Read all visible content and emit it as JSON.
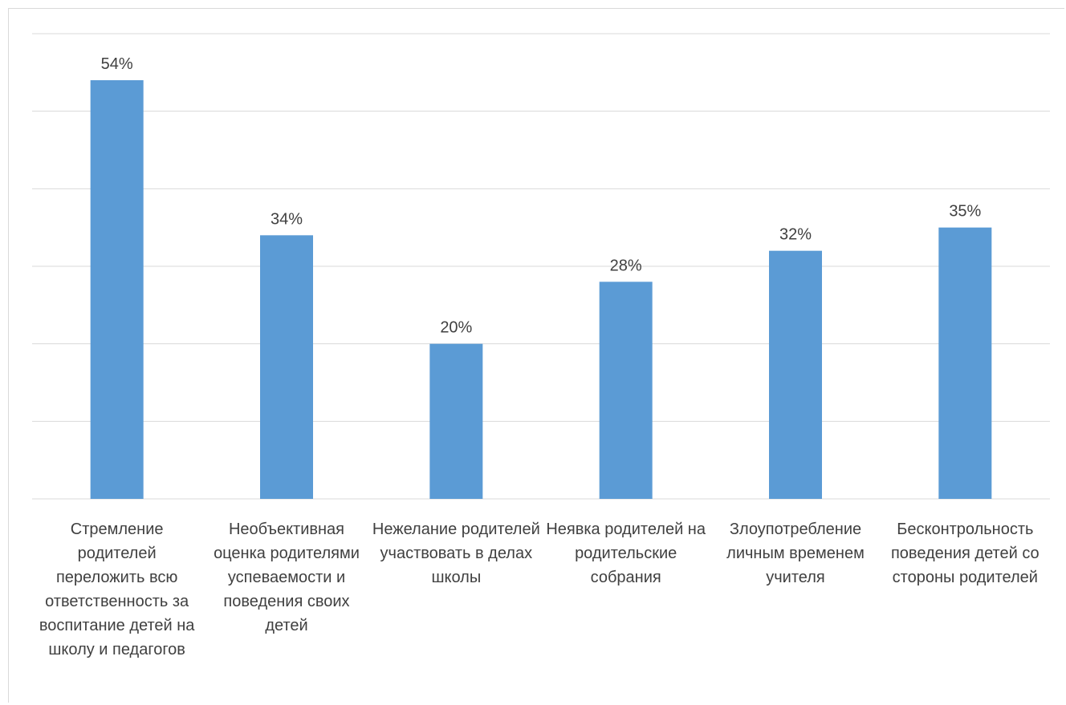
{
  "chart_data": {
    "type": "bar",
    "categories": [
      "Стремление родителей переложить всю ответственность за воспитание детей на школу и педагогов",
      "Необъективная оценка родителями успеваемости и поведения своих детей",
      "Нежелание родителей участвовать в делах школы",
      "Неявка родителей на родительские собрания",
      "Злоупотребление личным временем учителя",
      "Бесконтрольность поведения детей со стороны родителей"
    ],
    "values": [
      54,
      34,
      20,
      28,
      32,
      35
    ],
    "data_labels": [
      "54%",
      "34%",
      "20%",
      "28%",
      "32%",
      "35%"
    ],
    "ylim": [
      0,
      60
    ],
    "gridlines": [
      10,
      20,
      30,
      40,
      50,
      60
    ],
    "grid": true,
    "bar_color": "#5b9bd5",
    "grid_color": "#d9d9d9",
    "label_color": "#404040"
  }
}
